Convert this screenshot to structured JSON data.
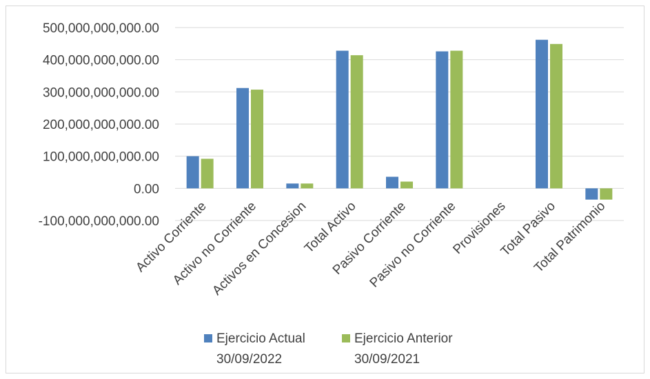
{
  "chart_data": {
    "type": "bar",
    "categories": [
      "Activo Corriente",
      "Activo no Corriente",
      "Activos en Concesion",
      "Total Activo",
      "Pasivo Corriente",
      "Pasivo no Corriente",
      "Provisiones",
      "Total Pasivo",
      "Total Patrimonio"
    ],
    "series": [
      {
        "name_lines": [
          "Ejercicio Actual",
          "30/09/2022"
        ],
        "color": "#4f81bd",
        "values": [
          100000000000,
          312000000000,
          15000000000,
          428000000000,
          36000000000,
          426000000000,
          0,
          462000000000,
          -35000000000
        ]
      },
      {
        "name_lines": [
          "Ejercicio Anterior",
          "30/09/2021"
        ],
        "color": "#9bbb59",
        "values": [
          92000000000,
          307000000000,
          15000000000,
          414000000000,
          21000000000,
          428000000000,
          0,
          449000000000,
          -35000000000
        ]
      }
    ],
    "ylim": [
      -100000000000,
      500000000000
    ],
    "yticks": [
      500000000000,
      400000000000,
      300000000000,
      200000000000,
      100000000000,
      0,
      -100000000000
    ],
    "ytick_labels": [
      "500,000,000,000.00",
      "400,000,000,000.00",
      "300,000,000,000.00",
      "200,000,000,000.00",
      "100,000,000,000.00",
      "0.00",
      "-100,000,000,000.00"
    ],
    "grid": true,
    "gridline_color": "#d9d9d9",
    "legend_position": "bottom"
  }
}
